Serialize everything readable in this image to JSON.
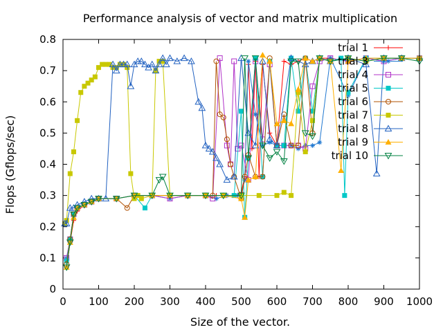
{
  "chart_data": {
    "type": "line",
    "title": "Performance analysis of vector and matrix multiplication",
    "xlabel": "Size of the vector.",
    "ylabel": "Flops (Gflops/sec)",
    "xlim": [
      0,
      1000
    ],
    "ylim": [
      0,
      0.8
    ],
    "xticks": [
      "0",
      "100",
      "200",
      "300",
      "400",
      "500",
      "600",
      "700",
      "800",
      "900",
      "1000"
    ],
    "yticks": [
      "0",
      "0.1",
      "0.2",
      "0.3",
      "0.4",
      "0.5",
      "0.6",
      "0.7",
      "0.8"
    ],
    "legend_position": "top-right",
    "grid": false,
    "series": [
      {
        "name": "trial 1",
        "color": "#ff0000",
        "marker": "plus",
        "x": [
          10,
          20,
          30,
          40,
          60,
          80,
          100,
          150,
          200,
          250,
          300,
          350,
          400,
          430,
          460,
          490,
          500,
          510,
          520,
          530,
          540,
          550,
          560,
          580,
          600,
          620,
          640,
          660,
          680,
          700,
          720,
          750,
          800,
          850,
          900,
          950,
          1000
        ],
        "y": [
          0.07,
          0.15,
          0.22,
          0.25,
          0.27,
          0.28,
          0.29,
          0.29,
          0.3,
          0.3,
          0.3,
          0.3,
          0.3,
          0.3,
          0.3,
          0.3,
          0.31,
          0.36,
          0.72,
          0.45,
          0.73,
          0.36,
          0.72,
          0.5,
          0.46,
          0.73,
          0.72,
          0.73,
          0.74,
          0.73,
          0.74,
          0.74,
          0.73,
          0.74,
          0.74,
          0.74,
          0.74
        ]
      },
      {
        "name": "trial 3",
        "color": "#1f77d0",
        "marker": "star",
        "x": [
          10,
          20,
          30,
          40,
          60,
          80,
          100,
          150,
          200,
          250,
          300,
          350,
          400,
          430,
          460,
          490,
          500,
          510,
          520,
          540,
          560,
          580,
          600,
          620,
          640,
          660,
          680,
          700,
          720,
          750,
          800,
          850,
          900,
          950,
          1000
        ],
        "y": [
          0.1,
          0.16,
          0.24,
          0.26,
          0.27,
          0.28,
          0.29,
          0.29,
          0.3,
          0.3,
          0.29,
          0.3,
          0.3,
          0.29,
          0.3,
          0.3,
          0.3,
          0.35,
          0.73,
          0.56,
          0.46,
          0.47,
          0.46,
          0.46,
          0.46,
          0.45,
          0.46,
          0.46,
          0.47,
          0.74,
          0.62,
          0.74,
          0.73,
          0.74,
          0.74
        ]
      },
      {
        "name": "trial 4",
        "color": "#b030c8",
        "marker": "square",
        "x": [
          10,
          20,
          30,
          40,
          60,
          80,
          100,
          150,
          200,
          250,
          300,
          350,
          400,
          420,
          440,
          460,
          470,
          480,
          490,
          500,
          520,
          540,
          560,
          580,
          600,
          620,
          640,
          660,
          680,
          700,
          720,
          750,
          800,
          850,
          900,
          950,
          1000
        ],
        "y": [
          0.1,
          0.16,
          0.24,
          0.26,
          0.27,
          0.28,
          0.29,
          0.29,
          0.3,
          0.3,
          0.29,
          0.3,
          0.3,
          0.29,
          0.74,
          0.46,
          0.4,
          0.73,
          0.45,
          0.46,
          0.35,
          0.73,
          0.48,
          0.72,
          0.46,
          0.46,
          0.46,
          0.46,
          0.45,
          0.65,
          0.73,
          0.74,
          0.73,
          0.74,
          0.73,
          0.74,
          0.74
        ]
      },
      {
        "name": "trial 5",
        "color": "#00c8c8",
        "marker": "filledsquare",
        "x": [
          10,
          20,
          30,
          40,
          60,
          80,
          100,
          150,
          200,
          230,
          250,
          300,
          350,
          400,
          450,
          480,
          500,
          510,
          520,
          540,
          560,
          580,
          600,
          620,
          640,
          660,
          680,
          700,
          720,
          750,
          780,
          790,
          800,
          850,
          900,
          950,
          1000
        ],
        "y": [
          0.09,
          0.16,
          0.24,
          0.26,
          0.27,
          0.28,
          0.29,
          0.29,
          0.3,
          0.26,
          0.3,
          0.3,
          0.3,
          0.3,
          0.3,
          0.3,
          0.57,
          0.23,
          0.42,
          0.74,
          0.36,
          0.73,
          0.46,
          0.46,
          0.74,
          0.57,
          0.74,
          0.57,
          0.74,
          0.73,
          0.74,
          0.3,
          0.63,
          0.74,
          0.74,
          0.74,
          0.74
        ]
      },
      {
        "name": "trial 6",
        "color": "#b05000",
        "marker": "circle",
        "x": [
          10,
          20,
          30,
          40,
          60,
          80,
          100,
          150,
          180,
          200,
          250,
          300,
          350,
          400,
          420,
          430,
          440,
          450,
          460,
          470,
          480,
          500,
          510,
          520,
          540,
          560,
          580,
          600,
          620,
          640,
          660,
          680,
          700,
          720,
          750,
          800,
          850,
          900,
          950,
          1000
        ],
        "y": [
          0.08,
          0.16,
          0.24,
          0.26,
          0.27,
          0.28,
          0.29,
          0.29,
          0.26,
          0.3,
          0.3,
          0.3,
          0.3,
          0.3,
          0.3,
          0.73,
          0.56,
          0.55,
          0.48,
          0.4,
          0.36,
          0.29,
          0.36,
          0.43,
          0.36,
          0.36,
          0.74,
          0.46,
          0.56,
          0.46,
          0.46,
          0.74,
          0.5,
          0.74,
          0.73,
          0.74,
          0.73,
          0.74,
          0.74,
          0.74
        ]
      },
      {
        "name": "trial 7",
        "color": "#c8c800",
        "marker": "filledsquare",
        "x": [
          5,
          10,
          20,
          30,
          40,
          50,
          60,
          70,
          80,
          90,
          100,
          110,
          120,
          130,
          140,
          150,
          160,
          170,
          180,
          190,
          200,
          210,
          220,
          250,
          260,
          270,
          280,
          300,
          350,
          400,
          450,
          500,
          550,
          600,
          620,
          640,
          660,
          680,
          700,
          720,
          750,
          800,
          850,
          900,
          950,
          1000
        ],
        "y": [
          0.21,
          0.22,
          0.37,
          0.44,
          0.54,
          0.63,
          0.65,
          0.66,
          0.67,
          0.68,
          0.71,
          0.72,
          0.72,
          0.72,
          0.71,
          0.71,
          0.72,
          0.72,
          0.71,
          0.37,
          0.29,
          0.3,
          0.29,
          0.3,
          0.7,
          0.73,
          0.73,
          0.3,
          0.3,
          0.3,
          0.3,
          0.3,
          0.3,
          0.3,
          0.31,
          0.3,
          0.63,
          0.44,
          0.54,
          0.74,
          0.73,
          0.74,
          0.73,
          0.74,
          0.74,
          0.74
        ]
      },
      {
        "name": "trial 8",
        "color": "#2060c0",
        "marker": "triangle",
        "x": [
          5,
          10,
          20,
          30,
          40,
          60,
          80,
          100,
          120,
          140,
          150,
          160,
          170,
          180,
          190,
          200,
          210,
          220,
          230,
          240,
          250,
          260,
          270,
          280,
          290,
          300,
          320,
          340,
          360,
          380,
          390,
          400,
          410,
          420,
          430,
          440,
          460,
          480,
          500,
          520,
          540,
          560,
          580,
          600,
          640,
          680,
          700,
          720,
          750,
          800,
          850,
          880,
          900,
          950,
          1000
        ],
        "y": [
          0.21,
          0.21,
          0.26,
          0.26,
          0.27,
          0.28,
          0.29,
          0.29,
          0.29,
          0.72,
          0.7,
          0.72,
          0.72,
          0.72,
          0.65,
          0.72,
          0.73,
          0.73,
          0.72,
          0.71,
          0.72,
          0.7,
          0.72,
          0.74,
          0.72,
          0.74,
          0.73,
          0.74,
          0.73,
          0.6,
          0.58,
          0.46,
          0.45,
          0.44,
          0.42,
          0.4,
          0.35,
          0.36,
          0.74,
          0.5,
          0.46,
          0.73,
          0.48,
          0.46,
          0.74,
          0.72,
          0.73,
          0.74,
          0.73,
          0.74,
          0.72,
          0.37,
          0.74,
          0.74,
          0.74
        ]
      },
      {
        "name": "trial 9",
        "color": "#ffb000",
        "marker": "filledtriangle",
        "x": [
          10,
          20,
          30,
          40,
          60,
          80,
          100,
          150,
          200,
          250,
          300,
          350,
          400,
          450,
          500,
          510,
          520,
          540,
          560,
          580,
          600,
          620,
          640,
          660,
          680,
          700,
          720,
          750,
          780,
          800,
          850,
          900,
          950,
          1000
        ],
        "y": [
          0.07,
          0.15,
          0.23,
          0.26,
          0.27,
          0.28,
          0.29,
          0.29,
          0.3,
          0.3,
          0.3,
          0.3,
          0.3,
          0.3,
          0.29,
          0.23,
          0.35,
          0.36,
          0.75,
          0.73,
          0.53,
          0.54,
          0.53,
          0.64,
          0.74,
          0.73,
          0.74,
          0.73,
          0.38,
          0.73,
          0.74,
          0.74,
          0.74,
          0.74
        ]
      },
      {
        "name": "trial 10",
        "color": "#008040",
        "marker": "invtriangle",
        "x": [
          10,
          20,
          30,
          40,
          60,
          80,
          100,
          150,
          200,
          250,
          270,
          280,
          300,
          350,
          400,
          450,
          500,
          510,
          520,
          540,
          560,
          580,
          600,
          620,
          640,
          660,
          680,
          700,
          720,
          750,
          800,
          850,
          900,
          950,
          1000
        ],
        "y": [
          0.07,
          0.15,
          0.24,
          0.26,
          0.27,
          0.28,
          0.29,
          0.29,
          0.3,
          0.3,
          0.35,
          0.36,
          0.3,
          0.3,
          0.3,
          0.3,
          0.3,
          0.74,
          0.42,
          0.74,
          0.46,
          0.42,
          0.44,
          0.41,
          0.73,
          0.73,
          0.5,
          0.49,
          0.74,
          0.73,
          0.74,
          0.73,
          0.74,
          0.74,
          0.73
        ]
      }
    ]
  }
}
